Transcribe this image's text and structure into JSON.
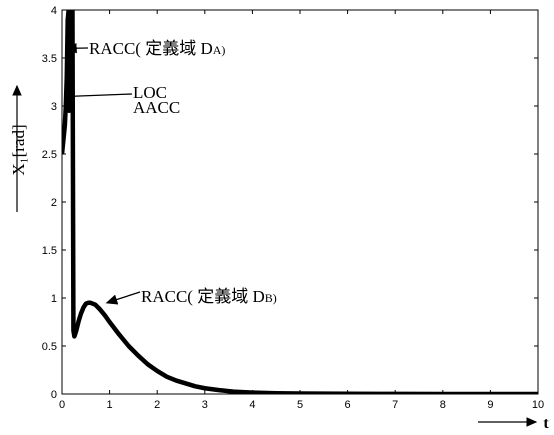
{
  "chart_data": {
    "type": "line",
    "ylabel": "X₁[rad]",
    "xlabel": "t",
    "xlim": [
      0,
      10
    ],
    "ylim": [
      0,
      4
    ],
    "x_ticks": [
      "0",
      "1",
      "2",
      "3",
      "4",
      "5",
      "6",
      "7",
      "8",
      "9",
      "10"
    ],
    "y_ticks": [
      "0",
      "0.5",
      "1",
      "1.5",
      "2",
      "2.5",
      "3",
      "3.5",
      "4"
    ],
    "grid": false,
    "colors": {
      "line": "#000000",
      "axis": "#000000"
    },
    "series": [
      {
        "x": [
          0,
          0.03,
          0.06,
          0.08,
          0.1,
          0.12,
          0.14,
          0.15,
          0.16,
          0.18,
          0.19,
          0.2,
          0.21,
          0.22,
          0.24,
          0.26,
          0.3,
          0.35,
          0.4,
          0.45,
          0.5,
          0.55,
          0.6,
          0.7,
          0.8,
          0.9,
          1.0,
          1.2,
          1.4,
          1.6,
          1.8,
          2.0,
          2.2,
          2.4,
          2.6,
          2.8,
          3.0,
          3.3,
          3.6,
          4.0,
          4.5,
          5,
          6,
          7,
          8,
          9,
          10
        ],
        "y": [
          2.5,
          2.65,
          2.8,
          3.0,
          3.3,
          3.9,
          4.0,
          2.95,
          4.0,
          4.0,
          4.0,
          4.0,
          4.0,
          4.0,
          0.66,
          0.6,
          0.66,
          0.76,
          0.84,
          0.9,
          0.94,
          0.95,
          0.95,
          0.93,
          0.88,
          0.82,
          0.75,
          0.62,
          0.5,
          0.4,
          0.31,
          0.24,
          0.18,
          0.14,
          0.11,
          0.08,
          0.06,
          0.04,
          0.025,
          0.015,
          0.008,
          0.005,
          0.002,
          0.001,
          0.0005,
          0.0002,
          0.0001
        ]
      }
    ],
    "annotations": [
      {
        "main": "RACC( 定義域 D",
        "sub": "A)",
        "x": 0.05,
        "y": 3.6
      },
      {
        "main": "LOC",
        "sub": "",
        "x": 0.12,
        "y": 3.1
      },
      {
        "main": "AACC",
        "sub": "",
        "x": 0.12,
        "y": 2.97
      },
      {
        "main": "RACC( 定義域 D",
        "sub": "B)",
        "x": 0.9,
        "y": 0.95
      }
    ]
  }
}
